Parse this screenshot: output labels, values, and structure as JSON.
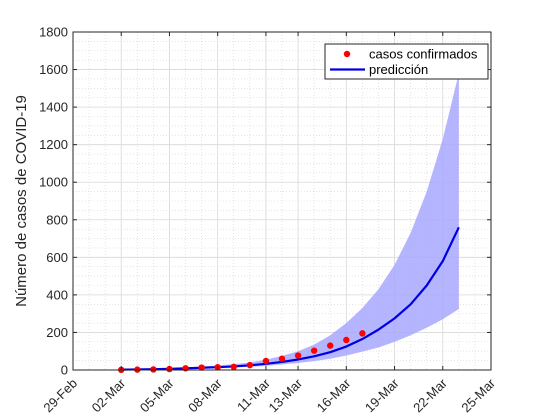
{
  "chart_data": {
    "type": "line",
    "title": "",
    "xlabel": "",
    "ylabel": "Número de casos de COVID-19",
    "x_tick_labels": [
      "29-Feb",
      "02-Mar",
      "05-Mar",
      "08-Mar",
      "11-Mar",
      "13-Mar",
      "16-Mar",
      "19-Mar",
      "22-Mar",
      "25-Mar"
    ],
    "x_tick_days": [
      -1,
      2,
      5,
      8,
      11,
      13,
      16,
      19,
      22,
      25
    ],
    "xlim_days": [
      -1,
      25
    ],
    "ylim": [
      0,
      1800
    ],
    "y_ticks": [
      0,
      200,
      400,
      600,
      800,
      1000,
      1200,
      1400,
      1600,
      1800
    ],
    "grid": true,
    "minor_grid": true,
    "legend_position": "top-right",
    "colors": {
      "points": "#ff0000",
      "line": "#0000e0",
      "band": "#a8a8ff"
    },
    "series": [
      {
        "name": "casos confirmados",
        "kind": "scatter",
        "x_days": [
          2,
          3,
          4,
          5,
          6,
          7,
          8,
          9,
          10,
          11,
          12,
          13,
          14,
          15,
          16,
          17
        ],
        "values": [
          1,
          2,
          3,
          5,
          9,
          13,
          15,
          17,
          26,
          48,
          60,
          77,
          103,
          130,
          160,
          195
        ]
      },
      {
        "name": "predicción",
        "kind": "line",
        "x_days": [
          2,
          3,
          4,
          5,
          6,
          7,
          8,
          9,
          10,
          11,
          12,
          13,
          14,
          15,
          16,
          17,
          18,
          19,
          20,
          21,
          22,
          23
        ],
        "values": [
          2,
          3,
          4,
          6,
          9,
          12,
          15,
          19,
          25,
          33,
          43,
          56,
          73,
          95,
          125,
          165,
          215,
          275,
          350,
          450,
          580,
          760
        ]
      },
      {
        "name": "",
        "kind": "band",
        "x_days": [
          2,
          3,
          4,
          5,
          6,
          7,
          8,
          9,
          10,
          11,
          12,
          13,
          14,
          15,
          16,
          17,
          18,
          19,
          20,
          21,
          22,
          23
        ],
        "lower": [
          1,
          2,
          3,
          4,
          6,
          8,
          11,
          14,
          17,
          22,
          29,
          37,
          47,
          60,
          77,
          98,
          120,
          150,
          185,
          225,
          270,
          325
        ],
        "upper": [
          3,
          4,
          6,
          9,
          13,
          18,
          24,
          31,
          40,
          55,
          75,
          100,
          135,
          185,
          250,
          330,
          430,
          560,
          730,
          950,
          1230,
          1580
        ]
      }
    ]
  }
}
